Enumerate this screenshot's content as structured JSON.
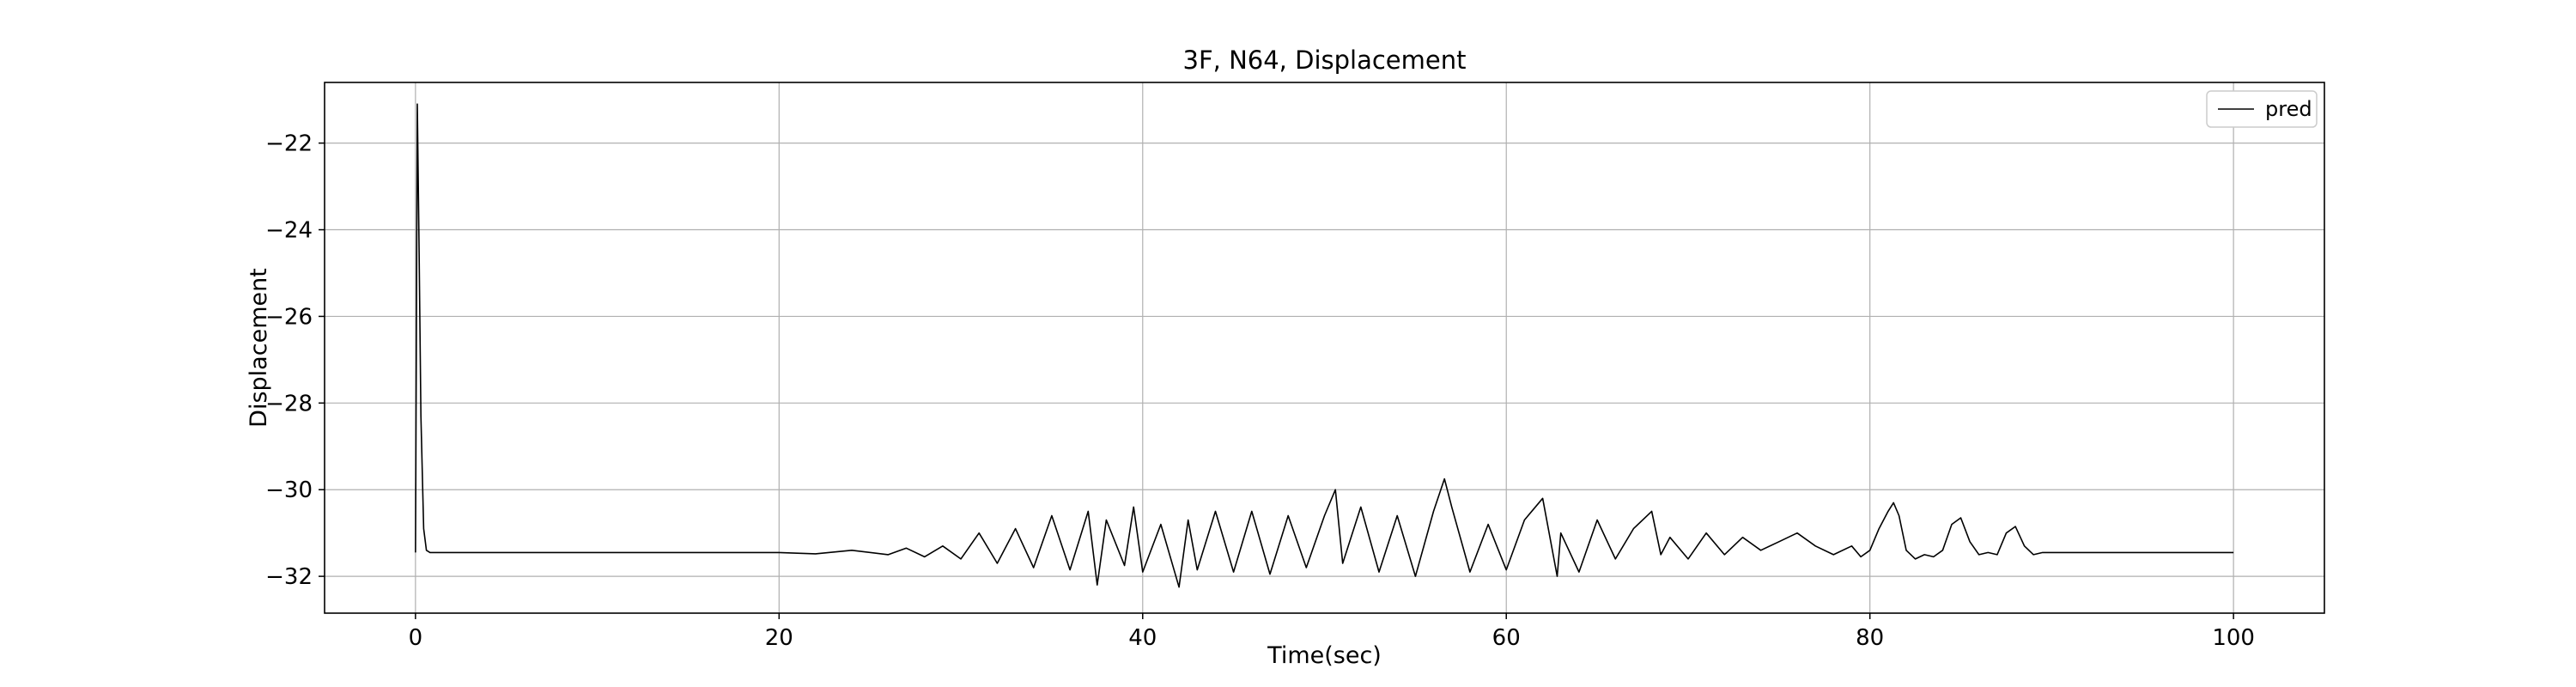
{
  "chart_data": {
    "type": "line",
    "title": "3F, N64, Displacement",
    "xlabel": "Time(sec)",
    "ylabel": "Displacement",
    "xlim": [
      -5,
      105
    ],
    "ylim": [
      -32.85,
      -20.6
    ],
    "xticks": [
      0,
      20,
      40,
      60,
      80,
      100
    ],
    "xtick_labels": [
      "0",
      "20",
      "40",
      "60",
      "80",
      "100"
    ],
    "yticks": [
      -32,
      -30,
      -28,
      -26,
      -24,
      -22
    ],
    "ytick_labels": [
      "−32",
      "−30",
      "−28",
      "−26",
      "−24",
      "−22"
    ],
    "grid": true,
    "legend": {
      "position": "top-right",
      "entries": [
        "pred"
      ]
    },
    "series": [
      {
        "name": "pred",
        "color": "#000000",
        "x": [
          0,
          0.1,
          0.2,
          0.3,
          0.45,
          0.6,
          0.8,
          1,
          2,
          5,
          10,
          15,
          20,
          22,
          24,
          26,
          27,
          28,
          29,
          30,
          31,
          32,
          33,
          34,
          35,
          36,
          37,
          37.5,
          38,
          39,
          39.5,
          40,
          41,
          42,
          42.5,
          43,
          44,
          45,
          46,
          47,
          48,
          49,
          50,
          50.6,
          51,
          52,
          53,
          54,
          55,
          56,
          56.6,
          57,
          58,
          59,
          60,
          61,
          62,
          62.8,
          63,
          64,
          65,
          66,
          67,
          68,
          68.5,
          69,
          70,
          71,
          72,
          73,
          74,
          75,
          76,
          77,
          78,
          79,
          79.5,
          80,
          80.5,
          81,
          81.3,
          81.6,
          82,
          82.5,
          83,
          83.5,
          84,
          84.5,
          85,
          85.5,
          86,
          86.5,
          87,
          87.5,
          88,
          88.5,
          89,
          89.5,
          90,
          95,
          100
        ],
        "values": [
          -31.45,
          -21.1,
          -24.5,
          -28.3,
          -30.9,
          -31.4,
          -31.45,
          -31.45,
          -31.45,
          -31.45,
          -31.45,
          -31.45,
          -31.45,
          -31.48,
          -31.4,
          -31.5,
          -31.35,
          -31.55,
          -31.3,
          -31.6,
          -31.0,
          -31.7,
          -30.9,
          -31.8,
          -30.6,
          -31.85,
          -30.5,
          -32.2,
          -30.7,
          -31.75,
          -30.4,
          -31.9,
          -30.8,
          -32.25,
          -30.7,
          -31.85,
          -30.5,
          -31.9,
          -30.5,
          -31.95,
          -30.6,
          -31.8,
          -30.6,
          -30.0,
          -31.7,
          -30.4,
          -31.9,
          -30.6,
          -32.0,
          -30.5,
          -29.75,
          -30.4,
          -31.9,
          -30.8,
          -31.85,
          -30.7,
          -30.2,
          -32.0,
          -31.0,
          -31.9,
          -30.7,
          -31.6,
          -30.9,
          -30.5,
          -31.5,
          -31.1,
          -31.6,
          -31.0,
          -31.5,
          -31.1,
          -31.4,
          -31.2,
          -31.0,
          -31.3,
          -31.5,
          -31.3,
          -31.55,
          -31.4,
          -30.9,
          -30.5,
          -30.3,
          -30.6,
          -31.4,
          -31.6,
          -31.5,
          -31.55,
          -31.4,
          -30.8,
          -30.65,
          -31.2,
          -31.5,
          -31.45,
          -31.5,
          -31.0,
          -30.85,
          -31.3,
          -31.5,
          -31.45,
          -31.45,
          -31.45,
          -31.45
        ]
      }
    ]
  }
}
